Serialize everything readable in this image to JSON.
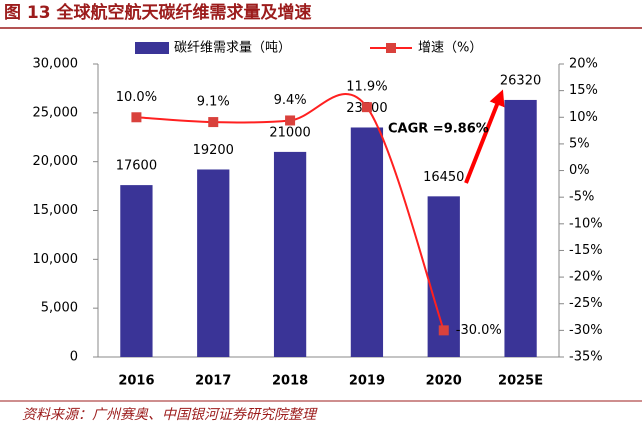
{
  "chart_data": {
    "type": "bar_line",
    "title": "图 13 全球航空航天碳纤维需求量及增速",
    "source": "资料来源：广州赛奥、中国银河证券研究院整理",
    "annotation": "CAGR =9.86%",
    "categories": [
      "2016",
      "2017",
      "2018",
      "2019",
      "2020",
      "2025E"
    ],
    "series": [
      {
        "name": "碳纤维需求量（吨）",
        "type": "bar",
        "color": "#3a3497",
        "values": [
          17600,
          19200,
          21000,
          23500,
          16450,
          26320
        ]
      },
      {
        "name": "增速（%）",
        "type": "line",
        "axis": "y2",
        "color": "#ff2020",
        "marker_color": "#d9413c",
        "values": [
          10.0,
          9.1,
          9.4,
          11.9,
          -30.0,
          null
        ],
        "value_labels": [
          "10.0%",
          "9.1%",
          "9.4%",
          "11.9%",
          "-30.0%",
          null
        ]
      }
    ],
    "ylim": [
      0,
      30000
    ],
    "yticks": [
      0,
      {
        "value": 5000,
        "label": "5,000"
      },
      {
        "value": 10000,
        "label": "10,000"
      },
      {
        "value": 15000,
        "label": "15,000"
      },
      {
        "value": 20000,
        "label": "20,000"
      },
      {
        "value": 25000,
        "label": "25,000"
      },
      {
        "value": 30000,
        "label": "30,000"
      }
    ],
    "y2lim": [
      -35,
      20
    ],
    "y2ticks": [
      {
        "value": -35,
        "label": "-35%"
      },
      {
        "value": -30,
        "label": "-30%"
      },
      {
        "value": -25,
        "label": "-25%"
      },
      {
        "value": -20,
        "label": "-20%"
      },
      {
        "value": -15,
        "label": "-15%"
      },
      {
        "value": -10,
        "label": "-10%"
      },
      {
        "value": -5,
        "label": "-5%"
      },
      {
        "value": 0,
        "label": "0%"
      },
      {
        "value": 5,
        "label": "5%"
      },
      {
        "value": 10,
        "label": "10%"
      },
      {
        "value": 15,
        "label": "15%"
      },
      {
        "value": 20,
        "label": "20%"
      }
    ]
  }
}
